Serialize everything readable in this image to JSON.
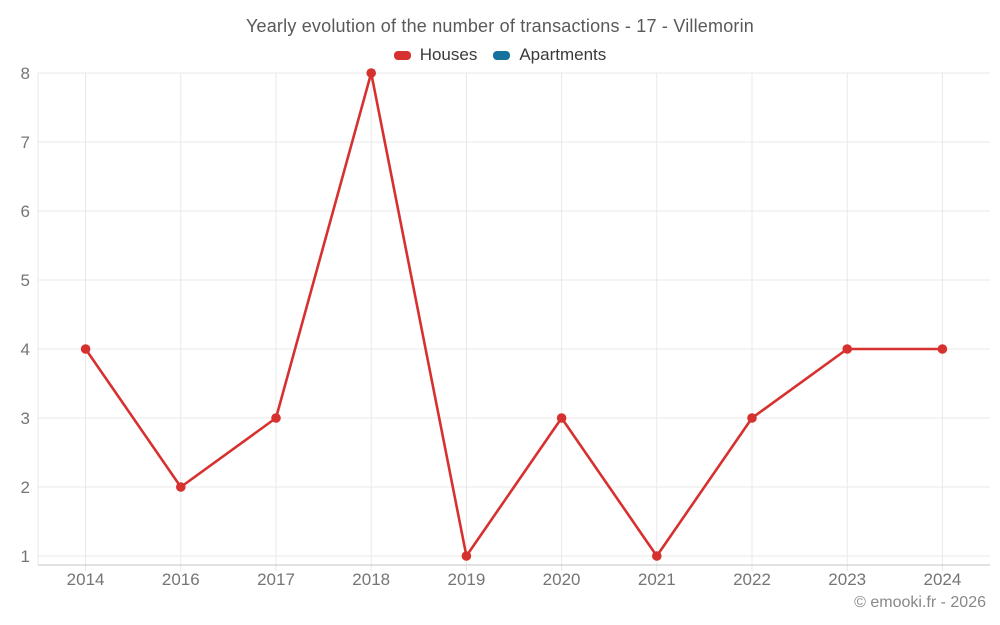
{
  "chart_data": {
    "type": "line",
    "title": "Yearly evolution of the number of transactions - 17 - Villemorin",
    "categories": [
      "2014",
      "2016",
      "2017",
      "2018",
      "2019",
      "2020",
      "2021",
      "2022",
      "2023",
      "2024"
    ],
    "series": [
      {
        "name": "Houses",
        "color": "#d7312f",
        "values": [
          4,
          2,
          3,
          8,
          1,
          3,
          1,
          3,
          4,
          4
        ]
      },
      {
        "name": "Apartments",
        "color": "#17719d",
        "values": [
          null,
          null,
          null,
          null,
          null,
          null,
          null,
          null,
          null,
          null
        ]
      }
    ],
    "xlabel": "",
    "ylabel": "",
    "ylim": [
      1,
      8
    ],
    "yticks": [
      1,
      2,
      3,
      4,
      5,
      6,
      7,
      8
    ],
    "grid": true,
    "legend_position": "top",
    "marker": "circle"
  },
  "footer": {
    "credit": "© emooki.fr - 2026"
  },
  "colors": {
    "background": "#ffffff",
    "grid_line": "#e8e8e8",
    "axis_line": "#c6c6c6",
    "tick_label": "#757575",
    "title_text": "#595959",
    "legend_text": "#3a3a3a",
    "footer_text": "#87888a"
  }
}
